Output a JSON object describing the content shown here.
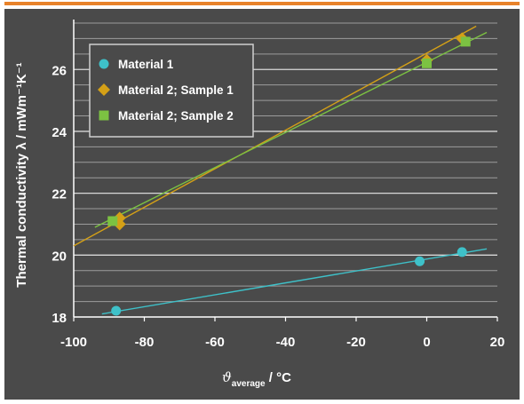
{
  "chart_data": {
    "type": "scatter",
    "title": "",
    "xlabel": "ϑ",
    "xlabel_sub": "average",
    "xlabel_unit": " / °C",
    "ylabel": "Thermal conductivity λ / mWm⁻¹K⁻¹",
    "xlim": [
      -100,
      20
    ],
    "ylim": [
      18,
      27.5
    ],
    "xticks": [
      -100,
      -80,
      -60,
      -40,
      -20,
      0,
      20
    ],
    "yticks": [
      18,
      20,
      22,
      24,
      26
    ],
    "xtick_labels": [
      "-100",
      "-80",
      "-60",
      "-40",
      "-20",
      "0",
      "20"
    ],
    "ytick_labels": [
      "18",
      "20",
      "22",
      "24",
      "26"
    ],
    "minor_y_step": 0.5,
    "grid": true,
    "legend_position": "top-left",
    "series": [
      {
        "name": "Material 1",
        "marker": "circle",
        "color": "#3ec1c9",
        "points": [
          [
            -88,
            18.2
          ],
          [
            -2,
            19.8
          ],
          [
            10,
            20.1
          ]
        ],
        "fit": [
          [
            -92,
            18.1
          ],
          [
            17,
            20.2
          ]
        ]
      },
      {
        "name": "Material 2; Sample 1",
        "marker": "diamond",
        "color": "#d4a017",
        "points": [
          [
            -87,
            21.2
          ],
          [
            -87,
            21.0
          ],
          [
            0,
            26.3
          ],
          [
            10,
            27.0
          ]
        ],
        "fit": [
          [
            -100,
            20.3
          ],
          [
            14,
            27.4
          ]
        ]
      },
      {
        "name": "Material 2; Sample 2",
        "marker": "square",
        "color": "#7cc242",
        "points": [
          [
            -89,
            21.1
          ],
          [
            0,
            26.2
          ],
          [
            11,
            26.9
          ]
        ],
        "fit": [
          [
            -94,
            20.9
          ],
          [
            17,
            27.2
          ]
        ]
      }
    ]
  }
}
